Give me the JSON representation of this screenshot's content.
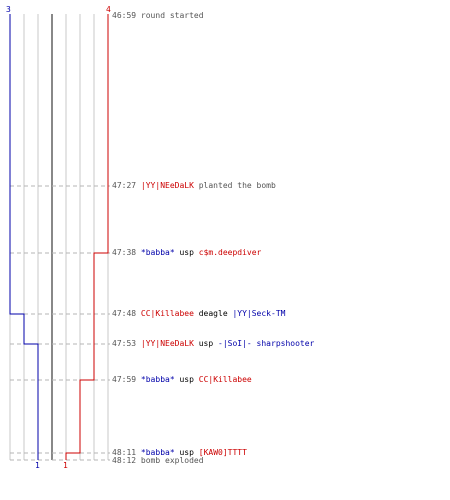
{
  "round": {
    "ct_start_count": "3",
    "t_start_count": "4",
    "ct_end_count": "1",
    "t_end_count": "1"
  },
  "colors": {
    "ct": "#0000aa",
    "t": "#cc0000",
    "grid": "#c8c8c8",
    "dashed": "#b4b4b4",
    "text": "#555555"
  },
  "events": [
    {
      "time": "46:59",
      "text": "round started"
    },
    {
      "time": "47:27",
      "actor": "|YY|NEeDaLK",
      "actor_team": "t",
      "text": "planted the bomb"
    },
    {
      "time": "47:38",
      "killer": "*babba*",
      "killer_team": "ct",
      "weapon": "usp",
      "victim": "c$m.deepdiver",
      "victim_team": "t"
    },
    {
      "time": "47:48",
      "killer": "CC|Killabee",
      "killer_team": "t",
      "weapon": "deagle",
      "victim": "|YY|Seck-TM",
      "victim_team": "ct"
    },
    {
      "time": "47:53",
      "killer": "|YY|NEeDaLK",
      "killer_team": "t",
      "weapon": "usp",
      "victim": "-|SoI|- sharpshooter",
      "victim_team": "ct"
    },
    {
      "time": "47:59",
      "killer": "*babba*",
      "killer_team": "ct",
      "weapon": "usp",
      "victim": "CC|Killabee",
      "victim_team": "t"
    },
    {
      "time": "48:11",
      "killer": "*babba*",
      "killer_team": "ct",
      "weapon": "usp",
      "victim": "[KAW0]TTTT",
      "victim_team": "t"
    },
    {
      "time": "48:12",
      "text": "bomb exploded"
    }
  ]
}
